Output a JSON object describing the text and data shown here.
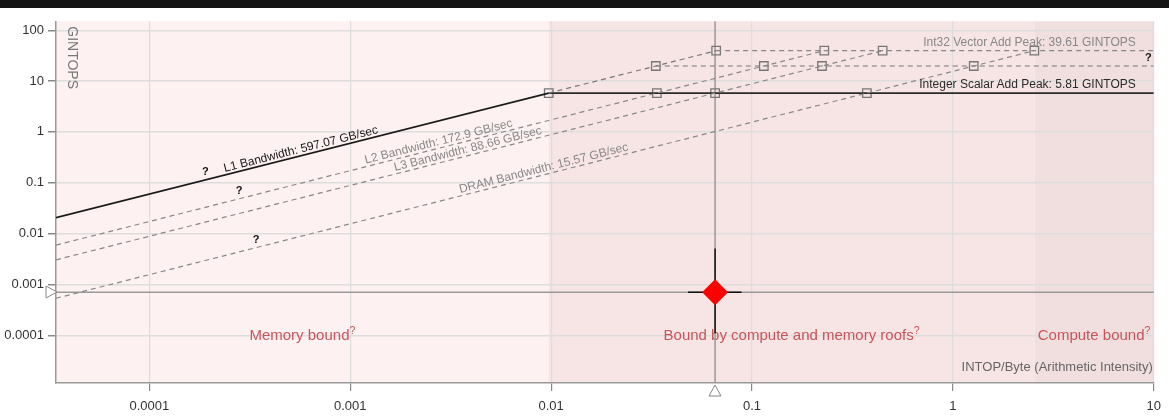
{
  "chart_data": {
    "type": "line",
    "xlabel": "INTOP/Byte (Arithmetic Intensity)",
    "ylabel": "GINTOPS",
    "log": "xy",
    "grid": true,
    "legend": false,
    "xlim": [
      3.43e-05,
      10
    ],
    "xticks": [
      0.0001,
      0.001,
      0.01,
      0.1,
      1,
      10
    ],
    "ylim": [
      1.15e-05,
      150
    ],
    "yticks": [
      0.0001,
      0.001,
      0.01,
      0.1,
      1,
      10,
      100
    ],
    "series": [
      {
        "name": "L1 Bandwidth: 597.07 GB/sec",
        "color": "#1a1a1a",
        "x": [
          3.43e-05,
          0.00973
        ],
        "values": [
          0.0205,
          5.81
        ],
        "line_style": "solid"
      },
      {
        "color": "#777777",
        "x": [
          0.00973,
          0.0332,
          0.0663
        ],
        "values": [
          5.81,
          19.8,
          39.61
        ],
        "line_style": "dashed"
      },
      {
        "name": "L2 Bandwidth: 172.9 GB/sec",
        "color": "#888888",
        "x": [
          3.43e-05,
          0.229
        ],
        "values": [
          0.00593,
          39.61
        ],
        "line_style": "dashed"
      },
      {
        "name": "L3 Bandwidth: 88.66 GB/sec",
        "color": "#888888",
        "x": [
          3.43e-05,
          0.447
        ],
        "values": [
          0.00304,
          39.61
        ],
        "line_style": "dashed"
      },
      {
        "name": "DRAM Bandwidth: 15.57 GB/sec",
        "color": "#888888",
        "x": [
          3.43e-05,
          2.544
        ],
        "values": [
          0.000534,
          39.61
        ],
        "line_style": "dashed"
      },
      {
        "name": "Int32 Vector Add Peak: 39.61 GINTOPS",
        "color": "#888888",
        "x": [
          0.0663,
          10
        ],
        "values": [
          39.61,
          39.61
        ],
        "line_style": "dashed"
      },
      {
        "color": "#777777",
        "x": [
          0.0332,
          10
        ],
        "values": [
          19.8,
          19.8
        ],
        "line_style": "dashed"
      },
      {
        "name": "Integer Scalar Add Peak: 5.81 GINTOPS",
        "color": "#2a2a2a",
        "x": [
          0.00973,
          10
        ],
        "values": [
          5.81,
          5.81
        ],
        "line_style": "solid"
      },
      {
        "type": "scatter",
        "marker": "square",
        "color": "#777777",
        "x": [
          0.00973,
          0.0336,
          0.0332,
          0.0655,
          0.0663,
          0.1145,
          0.223,
          0.229,
          0.373,
          0.447,
          1.27,
          2.544
        ],
        "values": [
          5.81,
          5.81,
          19.8,
          5.81,
          39.61,
          19.8,
          19.8,
          39.61,
          5.81,
          39.61,
          19.8,
          39.61
        ]
      },
      {
        "type": "scatter",
        "marker": "diamond",
        "color": "#ff0000",
        "x": [
          0.0655
        ],
        "values": [
          0.0007
        ],
        "errors": [
          [
            0.00011,
            0.0051
          ]
        ],
        "xerrors": [
          [
            0.048,
            0.0887
          ]
        ]
      }
    ],
    "ref_lines": [
      {
        "axis": "y",
        "value": 0.0007,
        "color": "#999999"
      },
      {
        "axis": "x",
        "value": 0.0655,
        "color": "#999999"
      }
    ],
    "bands": [
      {
        "axis": "x",
        "from": 3.43e-05,
        "to": 0.00973,
        "label": "Memory bound$^{?}$",
        "color": "#fdf1f1"
      },
      {
        "axis": "x",
        "from": 0.00973,
        "to": 2.544,
        "label": "Bound by compute and memory roofs$^{?}$",
        "color": "#f7e5e5"
      },
      {
        "axis": "x",
        "from": 2.544,
        "to": 10,
        "label": "Compute bound$^{?}$",
        "color": "#f1dfdf"
      }
    ],
    "annotations": [
      {
        "text": "?",
        "x": 0.00019,
        "y": 0.113
      },
      {
        "text": "?",
        "x": 0.00028,
        "y": 0.048
      },
      {
        "text": "?",
        "x": 0.00034,
        "y": 0.0053
      },
      {
        "text": "?",
        "x": 9.4,
        "y": 19.8
      }
    ]
  }
}
